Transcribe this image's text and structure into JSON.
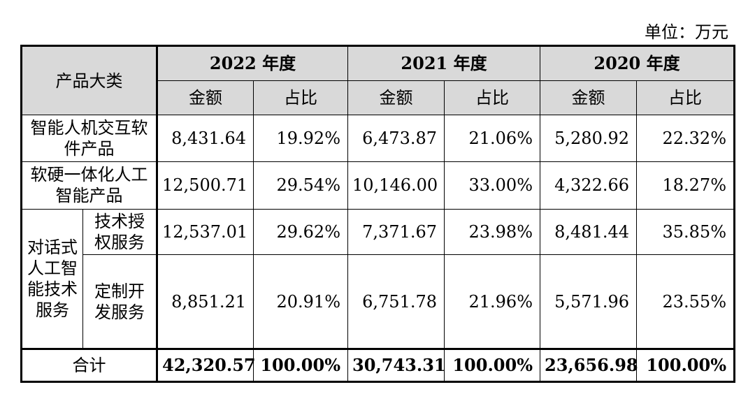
{
  "unit_label": "单位：万元",
  "header": {
    "category": "产品大类",
    "years": [
      "2022 年度",
      "2021 年度",
      "2020 年度"
    ],
    "amount": "金额",
    "share": "占比"
  },
  "rows": [
    {
      "name": "智能人机交互软件产品",
      "values": [
        "8,431.64",
        "19.92%",
        "6,473.87",
        "21.06%",
        "5,280.92",
        "22.32%"
      ]
    },
    {
      "name": "软硬一体化人工智能产品",
      "values": [
        "12,500.71",
        "29.54%",
        "10,146.00",
        "33.00%",
        "4,322.66",
        "18.27%"
      ]
    },
    {
      "group": "对话式人工智能技术服务",
      "name": "技术授权服务",
      "values": [
        "12,537.01",
        "29.62%",
        "7,371.67",
        "23.98%",
        "8,481.44",
        "35.85%"
      ]
    },
    {
      "name": "定制开发服务",
      "values": [
        "8,851.21",
        "20.91%",
        "6,751.78",
        "21.96%",
        "5,571.96",
        "23.55%"
      ]
    }
  ],
  "total": {
    "name": "合计",
    "values": [
      "42,320.57",
      "100.00%",
      "30,743.31",
      "100.00%",
      "23,656.98",
      "100.00%"
    ]
  }
}
